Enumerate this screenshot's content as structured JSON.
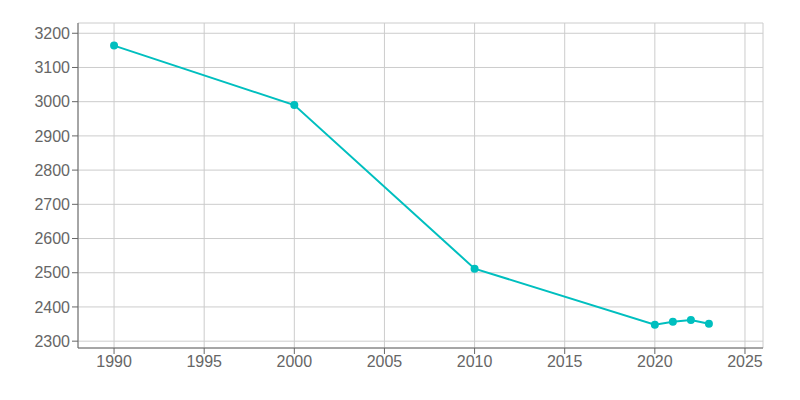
{
  "chart_data": {
    "type": "line",
    "x": [
      1990,
      2000,
      2010,
      2020,
      2021,
      2022,
      2023
    ],
    "values": [
      3164,
      2990,
      2512,
      2348,
      2357,
      2362,
      2351
    ],
    "color": "#00BFBF",
    "marker": "circle",
    "xlim": [
      1988,
      2026
    ],
    "ylim": [
      2280,
      3230
    ],
    "xticks": [
      1990,
      1995,
      2000,
      2005,
      2010,
      2015,
      2020,
      2025
    ],
    "yticks": [
      2300,
      2400,
      2500,
      2600,
      2700,
      2800,
      2900,
      3000,
      3100,
      3200
    ],
    "grid": true
  }
}
